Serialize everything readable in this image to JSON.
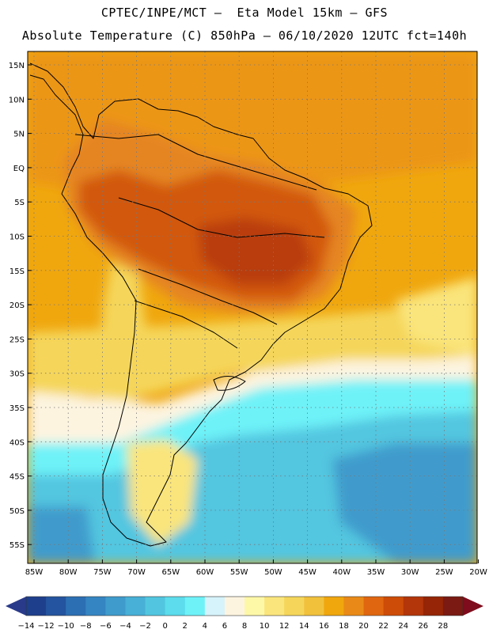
{
  "header": {
    "line1": "CPTEC/INPE/MCT –  Eta Model 15km – GFS",
    "line2": "Absolute Temperature (C) 850hPa – 06/10/2020 12UTC fct=140h"
  },
  "map": {
    "lat_labels": [
      "15N",
      "10N",
      "5N",
      "EQ",
      "5S",
      "10S",
      "15S",
      "20S",
      "25S",
      "30S",
      "35S",
      "40S",
      "45S",
      "50S",
      "55S"
    ],
    "lon_labels": [
      "85W",
      "80W",
      "75W",
      "70W",
      "65W",
      "60W",
      "55W",
      "50W",
      "45W",
      "40W",
      "35W",
      "30W",
      "25W",
      "20W"
    ]
  },
  "colorbar": {
    "labels": [
      "-14",
      "-12",
      "-10",
      "-8",
      "-6",
      "-4",
      "-2",
      "0",
      "2",
      "4",
      "6",
      "8",
      "10",
      "12",
      "14",
      "16",
      "18",
      "20",
      "22",
      "24",
      "26",
      "28"
    ],
    "colors": [
      "#1e3f8c",
      "#24549f",
      "#2c6fb3",
      "#3585c2",
      "#3f9bcc",
      "#48b0d6",
      "#52c6e0",
      "#5cdcec",
      "#6ef2f8",
      "#d6f3fb",
      "#fdf4e0",
      "#fdf8a8",
      "#fae57c",
      "#f5d65a",
      "#f1c13c",
      "#f0a70e",
      "#e98a18",
      "#e06610",
      "#cd4c08",
      "#b3350a",
      "#952506",
      "#7a1a12"
    ],
    "under_color": "#2a3a8a",
    "over_color": "#7e0c1c"
  }
}
